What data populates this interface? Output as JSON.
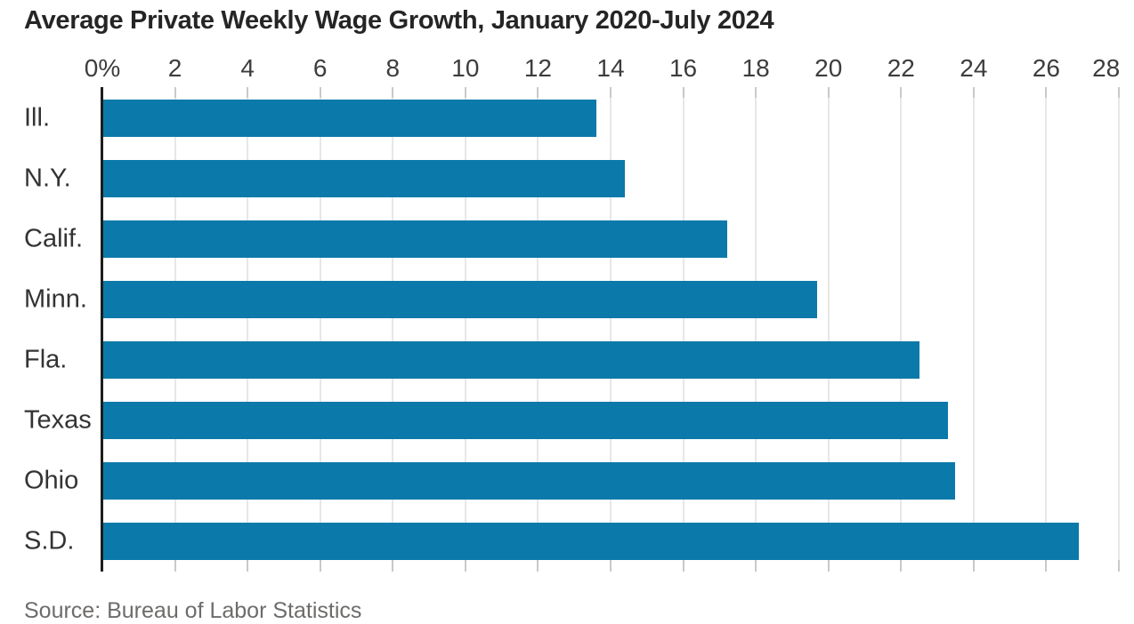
{
  "chart_data": {
    "type": "bar",
    "orientation": "horizontal",
    "title": "Average Private Weekly Wage Growth, January 2020-July 2024",
    "source": "Source: Bureau of Labor Statistics",
    "categories": [
      "Ill.",
      "N.Y.",
      "Calif.",
      "Minn.",
      "Fla.",
      "Texas",
      "Ohio",
      "S.D."
    ],
    "values": [
      13.6,
      14.4,
      17.2,
      19.7,
      22.5,
      23.3,
      23.5,
      26.9
    ],
    "value_unit": "percent",
    "xlim": [
      0,
      28
    ],
    "xtick_step": 2,
    "xtick_labels": [
      "0%",
      "2",
      "4",
      "6",
      "8",
      "10",
      "12",
      "14",
      "16",
      "18",
      "20",
      "22",
      "24",
      "26",
      "28"
    ],
    "grid": true,
    "legend": false,
    "colors": {
      "bar": "#0b79a9",
      "axis_line": "#1d1d1d",
      "gridline": "#e7e7e7",
      "tick": "#c9c9c9",
      "title_text": "#252525",
      "tick_text": "#3d3d3d",
      "category_text": "#333333",
      "source_text": "#6e6c6a"
    }
  }
}
